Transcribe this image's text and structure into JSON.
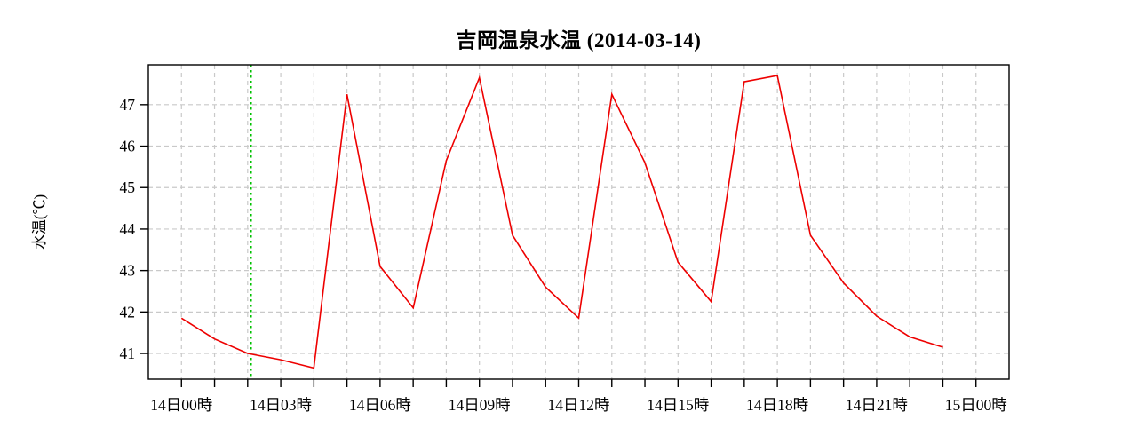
{
  "chart_data": {
    "type": "line",
    "title": "吉岡温泉水温 (2014-03-14)",
    "xlabel": "",
    "ylabel": "水温(℃)",
    "series": [
      {
        "name": "水温",
        "x_hours": [
          0,
          1,
          2,
          3,
          4,
          5,
          6,
          7,
          8,
          9,
          10,
          11,
          12,
          13,
          14,
          15,
          16,
          17,
          18,
          19,
          20,
          21,
          22,
          23
        ],
        "values": [
          41.85,
          41.35,
          41.0,
          40.85,
          40.65,
          47.25,
          43.1,
          42.1,
          45.65,
          47.65,
          43.85,
          42.6,
          41.85,
          47.25,
          45.6,
          43.2,
          42.25,
          47.55,
          47.7,
          43.85,
          42.7,
          41.9,
          41.4,
          41.15
        ]
      }
    ],
    "x_tick_labels": [
      "14日00時",
      "14日03時",
      "14日06時",
      "14日09時",
      "14日12時",
      "14日15時",
      "14日18時",
      "14日21時",
      "15日00時"
    ],
    "x_tick_hours": [
      0,
      3,
      6,
      9,
      12,
      15,
      18,
      21,
      24
    ],
    "x_minor_tick_step_hours": 1,
    "y_ticks": [
      41,
      42,
      43,
      44,
      45,
      46,
      47
    ],
    "xlim": [
      -1,
      25
    ],
    "ylim": [
      40.38,
      47.96
    ],
    "grid": true,
    "legend": "none",
    "colors": {
      "line": "#ee0000",
      "marker_line": "#00c000",
      "grid": "#c9c9c9",
      "axis": "#000000",
      "background": "#ffffff"
    },
    "marker_line": {
      "name": "current-time-marker",
      "x_hour": 2.1,
      "style": "dotted"
    }
  }
}
